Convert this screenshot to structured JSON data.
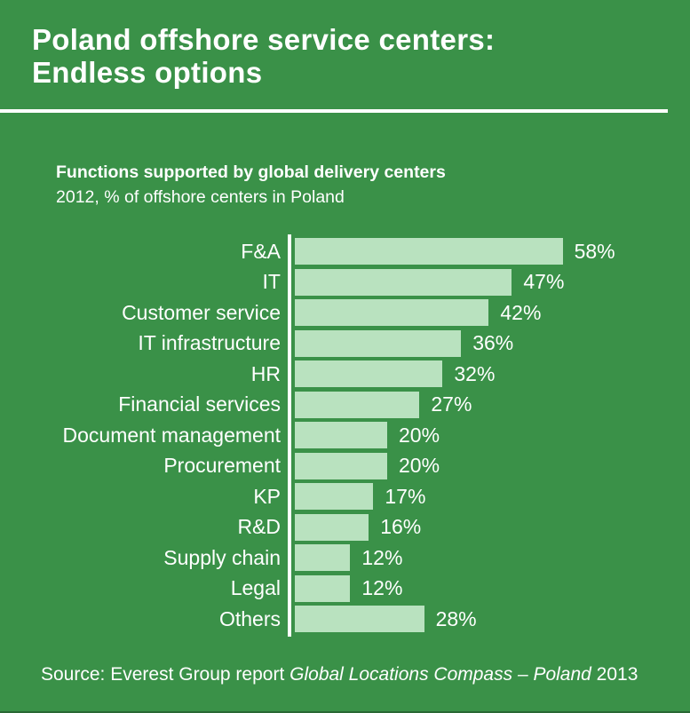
{
  "header": {
    "title": "Poland offshore service centers:\nEndless options"
  },
  "chart_data": {
    "type": "bar",
    "orientation": "horizontal",
    "title": "Functions supported by global delivery centers",
    "subtitle": "2012, % of offshore centers in Poland",
    "categories": [
      "F&A",
      "IT",
      "Customer service",
      "IT infrastructure",
      "HR",
      "Financial services",
      "Document management",
      "Procurement",
      "KP",
      "R&D",
      "Supply chain",
      "Legal",
      "Others"
    ],
    "values": [
      58,
      47,
      42,
      36,
      32,
      27,
      20,
      20,
      17,
      16,
      12,
      12,
      28
    ],
    "unit": "%",
    "xlim": [
      0,
      60
    ],
    "grid": false,
    "legend": "none",
    "value_labels": true,
    "bar_color": "#b9e2bf",
    "background_color": "#3a9148",
    "text_color": "#ffffff"
  },
  "source": {
    "prefix": "Source: Everest Group report ",
    "italic": "Global Locations Compass – Poland",
    "suffix": " 2013"
  }
}
